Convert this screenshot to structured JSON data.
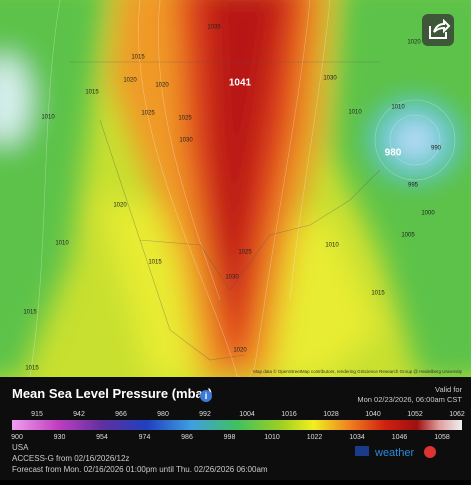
{
  "map": {
    "contour_labels": [
      1015,
      1020,
      1020,
      1015,
      1025,
      1025,
      1030,
      1041,
      1035,
      1020,
      1030,
      1010,
      1010,
      1010,
      980,
      990,
      995,
      1000,
      1005,
      1010,
      1020,
      1025,
      1030,
      1015,
      1010,
      1015,
      1015,
      1020,
      1015
    ],
    "attribution": "Map data © OpenStreetMap contributors, rendering GIScience Research Group @ Heidelberg University"
  },
  "legend": {
    "title": "Mean Sea Level Pressure (mbar)",
    "valid_label": "Valid for",
    "valid_time": "Mon 02/23/2026, 06:00am CST",
    "scale_top": [
      915,
      942,
      966,
      980,
      992,
      1004,
      1016,
      1028,
      1040,
      1052,
      1062
    ],
    "scale_bottom": [
      900,
      930,
      954,
      974,
      986,
      998,
      1010,
      1022,
      1034,
      1046,
      1058
    ]
  },
  "footer": {
    "region": "USA",
    "model": "ACCESS-G from 02/16/2026/12z",
    "forecast": "Forecast from Mon. 02/16/2026 01:00pm until Thu. 02/26/2026 06:00am",
    "brand": "weather"
  }
}
